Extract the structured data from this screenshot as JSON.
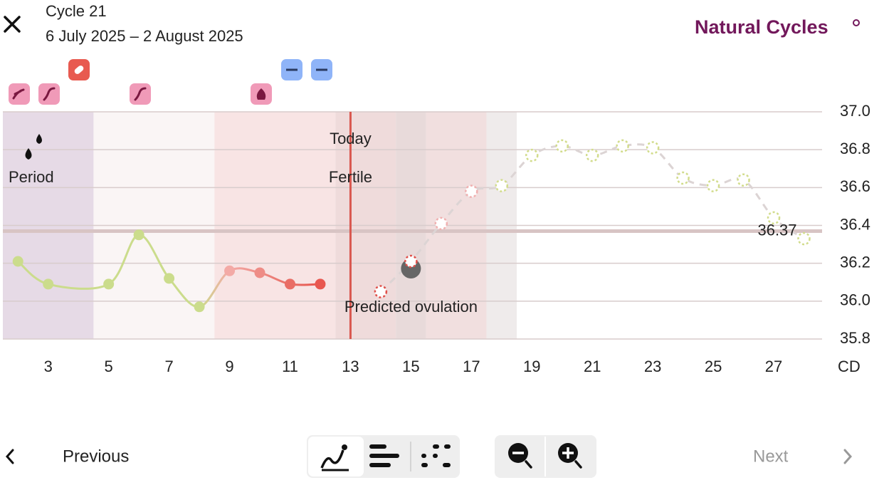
{
  "header": {
    "cycle": "Cycle 21",
    "dates": "6 July 2025 – 2 August 2025",
    "brand": "Natural Cycles"
  },
  "chart_data": {
    "type": "line",
    "xlim": [
      1.5,
      28.6
    ],
    "xticks": [
      3,
      5,
      7,
      9,
      11,
      13,
      15,
      17,
      19,
      21,
      23,
      25,
      27
    ],
    "xlabel": "CD",
    "ylim": [
      35.8,
      37.0
    ],
    "yticks": [
      {
        "value": 35.8,
        "label": "35.8"
      },
      {
        "value": 36.0,
        "label": "36.0"
      },
      {
        "value": 36.2,
        "label": "36.2"
      },
      {
        "value": 36.4,
        "label": "36.4"
      },
      {
        "value": 36.6,
        "label": "36.6"
      },
      {
        "value": 36.8,
        "label": "36.8"
      },
      {
        "value": 37.0,
        "label": "37.0"
      }
    ],
    "grid": true,
    "bands": [
      {
        "from": 1.5,
        "to": 4.5,
        "color": "#e6dae6"
      },
      {
        "from": 4.5,
        "to": 8.5,
        "color": "#faf5f5"
      },
      {
        "from": 8.5,
        "to": 12.5,
        "color": "#f8e4e4"
      },
      {
        "from": 12.5,
        "to": 14.5,
        "color": "#efdbdb"
      },
      {
        "from": 14.5,
        "to": 15.5,
        "color": "#e8dada"
      },
      {
        "from": 15.5,
        "to": 17.5,
        "color": "#f1dfdf"
      },
      {
        "from": 17.5,
        "to": 18.5,
        "color": "#efebeb"
      }
    ],
    "series": [
      {
        "x": [
          2,
          3,
          5,
          6,
          7,
          8,
          9,
          10,
          11,
          12
        ],
        "values": [
          36.21,
          36.09,
          36.09,
          36.35,
          36.12,
          35.97,
          36.16,
          36.15,
          36.09,
          36.09
        ],
        "colors": [
          "#cbdc8c",
          "#cbdc8c",
          "#cbdc8c",
          "#cbdc8c",
          "#cbdc8c",
          "#cbdc8c",
          "#f3aaa6",
          "#ee8c86",
          "#e96d65",
          "#e8574f"
        ],
        "style": "solid"
      },
      {
        "x": [
          14,
          15,
          16,
          17,
          18,
          19,
          20,
          21,
          22,
          23,
          24,
          25,
          26,
          27,
          28
        ],
        "values": [
          36.05,
          36.21,
          36.41,
          36.58,
          36.61,
          36.77,
          36.82,
          36.77,
          36.82,
          36.81,
          36.65,
          36.61,
          36.64,
          36.44,
          36.33
        ],
        "colors": [
          "#e0504a",
          "#e0504a",
          "#f0b0b0",
          "#f0b0b0",
          "#d2dc8c",
          "#d2dc8c",
          "#d2dc8c",
          "#d2dc8c",
          "#d2dc8c",
          "#d2dc8c",
          "#d2dc8c",
          "#d2dc8c",
          "#d2dc8c",
          "#d2dc8c",
          "#d2dc8c"
        ],
        "style": "dashed"
      }
    ],
    "coverline": 36.37,
    "today": 13,
    "ovulation_day": 15,
    "annotations": {
      "period": "Period",
      "today": "Today",
      "fertile": "Fertile",
      "ovulation": "Predicted ovulation"
    }
  },
  "footer": {
    "previous": "Previous",
    "next": "Next"
  }
}
